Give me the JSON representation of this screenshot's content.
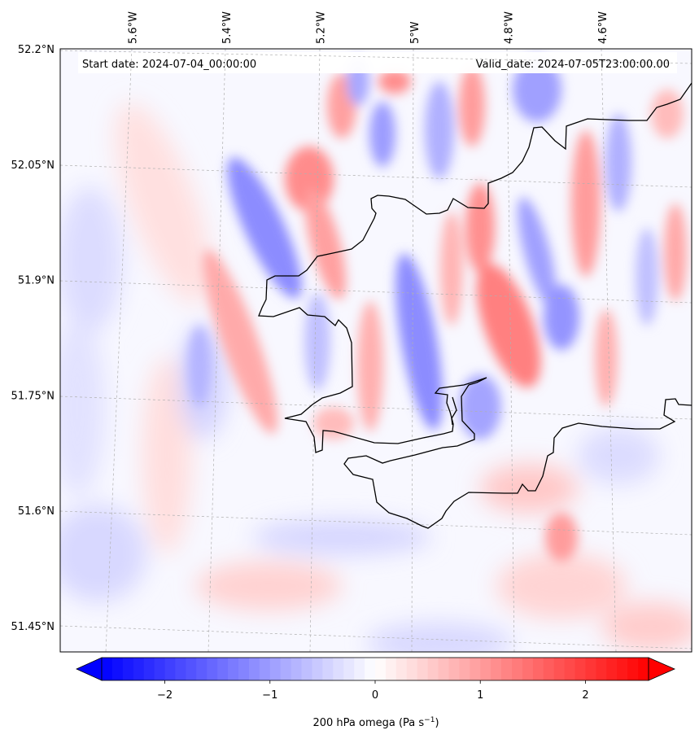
{
  "map": {
    "start_label": "Start date: 2024-07-04_00:00:00",
    "valid_label": "Valid_date: 2024-07-05T23:00:00.00",
    "lon_labels": [
      {
        "value": -5.6,
        "text": "5.6°W"
      },
      {
        "value": -5.4,
        "text": "5.4°W"
      },
      {
        "value": -5.2,
        "text": "5.2°W"
      },
      {
        "value": -5.0,
        "text": "5°W"
      },
      {
        "value": -4.8,
        "text": "4.8°W"
      },
      {
        "value": -4.6,
        "text": "4.6°W"
      }
    ],
    "lat_labels": [
      {
        "value": 52.2,
        "text": "52.2°N"
      },
      {
        "value": 52.05,
        "text": "52.05°N"
      },
      {
        "value": 51.9,
        "text": "51.9°N"
      },
      {
        "value": 51.75,
        "text": "51.75°N"
      },
      {
        "value": 51.6,
        "text": "51.6°N"
      },
      {
        "value": 51.45,
        "text": "51.45°N"
      }
    ],
    "field_colors": {
      "negative": "#0000ff",
      "zero": "#ffffff",
      "positive": "#ff0000",
      "coast": "#000000"
    }
  },
  "colorbar": {
    "min": -2.6,
    "max": 2.6,
    "ticks": [
      {
        "value": -2,
        "text": "−2"
      },
      {
        "value": -1,
        "text": "−1"
      },
      {
        "value": 0,
        "text": "0"
      },
      {
        "value": 1,
        "text": "1"
      },
      {
        "value": 2,
        "text": "2"
      }
    ],
    "label": "200 hPa omega (Pa s",
    "label_sup": "−1",
    "label_end": ")",
    "extend": "both"
  }
}
